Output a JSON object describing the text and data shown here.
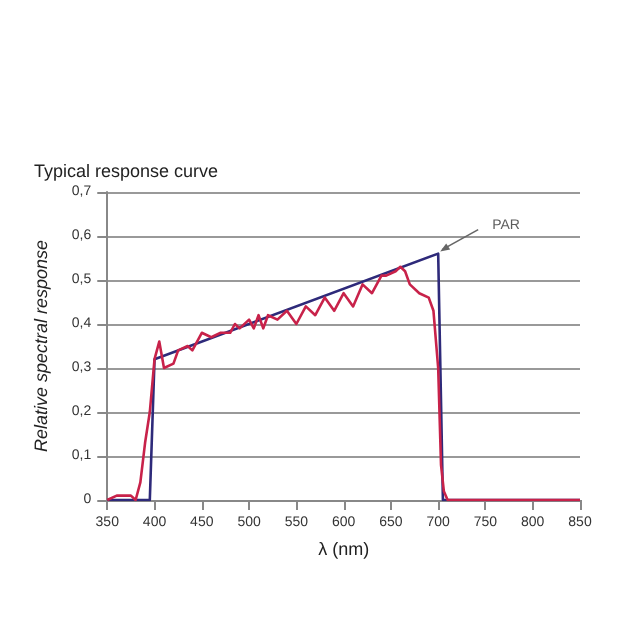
{
  "chart_data": {
    "type": "line",
    "title": "Typical response curve",
    "xlabel": "λ (nm)",
    "ylabel": "Relative spectral response",
    "xlim": [
      350,
      850
    ],
    "xticks": [
      350,
      400,
      450,
      500,
      550,
      600,
      650,
      700,
      750,
      800,
      850
    ],
    "ylim": [
      0,
      0.7
    ],
    "yticks": [
      0,
      {
        "value": 0.1,
        "label": "0,1"
      },
      {
        "value": 0.2,
        "label": "0,2"
      },
      {
        "value": 0.3,
        "label": "0,3"
      },
      {
        "value": 0.4,
        "label": "0,4"
      },
      {
        "value": 0.5,
        "label": "0,5"
      },
      {
        "value": 0.6,
        "label": "0,6"
      },
      {
        "value": 0.7,
        "label": "0,7"
      }
    ],
    "grid": "y",
    "marker": "none",
    "line_style": "solid",
    "annotations": [
      {
        "text": "PAR",
        "x": 700,
        "y": 0.56
      }
    ],
    "series": [
      {
        "color": "#2e2a7a",
        "x": [
          350,
          395,
          400,
          700,
          705,
          850
        ],
        "values": [
          0,
          0,
          0.32,
          0.56,
          0,
          0
        ]
      },
      {
        "color": "#c8224a",
        "x": [
          350,
          360,
          375,
          380,
          385,
          390,
          395,
          400,
          405,
          410,
          420,
          425,
          435,
          440,
          450,
          460,
          470,
          480,
          485,
          490,
          500,
          505,
          510,
          515,
          520,
          530,
          540,
          550,
          560,
          570,
          580,
          590,
          600,
          610,
          620,
          630,
          640,
          645,
          655,
          660,
          665,
          670,
          680,
          690,
          695,
          700,
          703,
          706,
          710,
          850
        ],
        "values": [
          0,
          0.01,
          0.01,
          0,
          0.04,
          0.13,
          0.2,
          0.32,
          0.36,
          0.3,
          0.31,
          0.34,
          0.35,
          0.34,
          0.38,
          0.37,
          0.38,
          0.38,
          0.4,
          0.39,
          0.41,
          0.39,
          0.42,
          0.39,
          0.42,
          0.41,
          0.43,
          0.4,
          0.44,
          0.42,
          0.46,
          0.43,
          0.47,
          0.44,
          0.49,
          0.47,
          0.51,
          0.51,
          0.52,
          0.53,
          0.52,
          0.49,
          0.47,
          0.46,
          0.43,
          0.3,
          0.08,
          0.02,
          0,
          0
        ]
      }
    ]
  }
}
